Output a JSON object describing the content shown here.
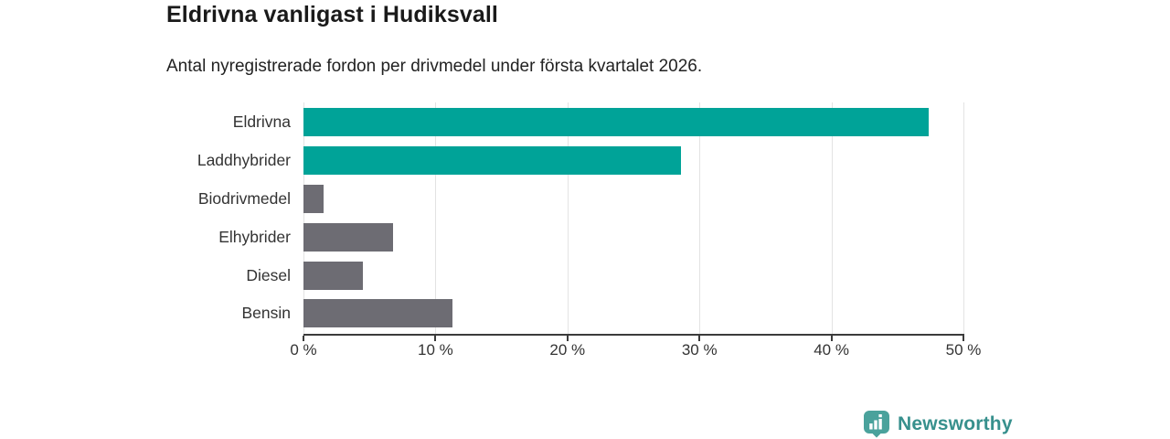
{
  "header": {
    "title": "Eldrivna vanligast i Hudiksvall",
    "subtitle": "Antal nyregistrerade fordon per drivmedel under första kvartalet 2026."
  },
  "chart_data": {
    "type": "bar",
    "orientation": "horizontal",
    "title": "Eldrivna vanligast i Hudiksvall",
    "subtitle": "Antal nyregistrerade fordon per drivmedel under första kvartalet 2026.",
    "categories": [
      "Eldrivna",
      "Laddhybrider",
      "Biodrivmedel",
      "Elhybrider",
      "Diesel",
      "Bensin"
    ],
    "values": [
      47.4,
      28.6,
      1.5,
      6.8,
      4.5,
      11.3
    ],
    "unit": "%",
    "bar_colors": [
      "#00a398",
      "#00a398",
      "#6d6c73",
      "#6d6c73",
      "#6d6c73",
      "#6d6c73"
    ],
    "xlim": [
      0,
      50
    ],
    "x_tick_values": [
      0,
      10,
      20,
      30,
      40,
      50
    ],
    "x_tick_labels": [
      "0 %",
      "10 %",
      "20 %",
      "30 %",
      "40 %",
      "50 %"
    ],
    "grid": true,
    "legend": false,
    "xlabel": "",
    "ylabel": ""
  },
  "colors": {
    "highlight": "#00a398",
    "muted": "#6d6c73",
    "axis": "#3b3b3b",
    "grid": "#e3e3e3",
    "label_text": "#333333",
    "title_text": "#1a1a1a",
    "logo": "#37908d"
  },
  "footer": {
    "brand": "Newsworthy",
    "logo_icon": "bar-chart-badge-icon"
  }
}
